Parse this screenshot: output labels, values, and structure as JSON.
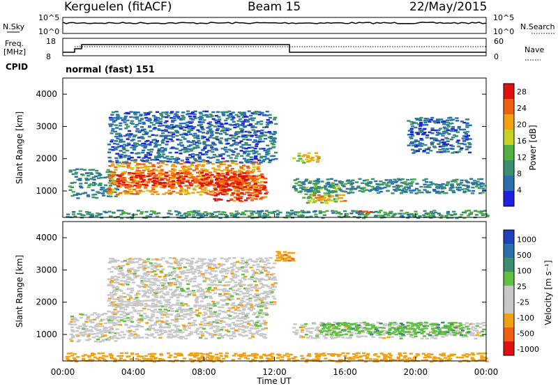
{
  "header": {
    "station": "Kerguelen (fitACF)",
    "beam": "Beam 15",
    "date": "22/May/2015"
  },
  "panels": {
    "nsky_label": "N.Sky",
    "nsky_ticks": [
      "10^5",
      "10^0"
    ],
    "nsearch_label": "N.Search",
    "nsearch_ticks": [
      "10^5",
      "10^0"
    ],
    "freq_label": "Freq.",
    "freq_unit": "[MHz]",
    "freq_ticks": [
      "18",
      "8"
    ],
    "nave_label": "Nave",
    "nave_ticks": [
      "60",
      "0"
    ],
    "cpid_label": "CPID",
    "cpid_text": "normal (fast) 151"
  },
  "colors": {
    "power_scale": [
      "#2020e0",
      "#2a6fb0",
      "#3a8f70",
      "#50b040",
      "#c8d020",
      "#f0a010",
      "#f06010",
      "#e01010"
    ],
    "velocity_scale": [
      "#e01010",
      "#f06010",
      "#f0a010",
      "#c8c8c8",
      "#c8c8c8",
      "#60c040",
      "#3a8f70",
      "#2a6fb0",
      "#2040c0"
    ]
  },
  "chart_data": [
    {
      "type": "heatmap",
      "name": "power",
      "xlabel": "",
      "ylabel": "Slant Range [km]",
      "x_ticks": [
        "00:00",
        "04:00",
        "08:00",
        "12:00",
        "16:00",
        "20:00",
        "00:00"
      ],
      "x_range_hours": [
        0,
        24
      ],
      "y_ticks": [
        1000,
        2000,
        3000,
        4000
      ],
      "y_range_km": [
        180,
        4500
      ],
      "colorbar_label": "Power [dB]",
      "colorbar_ticks": [
        4,
        8,
        12,
        16,
        20,
        24,
        28
      ],
      "colorbar_range": [
        0,
        30
      ],
      "regions": [
        {
          "t": [
            0.3,
            3.0
          ],
          "r": [
            800,
            1700
          ],
          "db": 8
        },
        {
          "t": [
            2.5,
            11.2
          ],
          "r": [
            900,
            1950
          ],
          "db": 22
        },
        {
          "t": [
            3.0,
            10.5
          ],
          "r": [
            1150,
            1600
          ],
          "db": 27
        },
        {
          "t": [
            8.5,
            11.5
          ],
          "r": [
            700,
            1500
          ],
          "db": 26
        },
        {
          "t": [
            2.5,
            12.0
          ],
          "r": [
            1900,
            3500
          ],
          "db": 6
        },
        {
          "t": [
            13.0,
            14.5
          ],
          "r": [
            1900,
            2200
          ],
          "db": 18
        },
        {
          "t": [
            13.5,
            15.5
          ],
          "r": [
            650,
            1300
          ],
          "db": 14
        },
        {
          "t": [
            14.0,
            16.0
          ],
          "r": [
            700,
            900
          ],
          "db": 22
        },
        {
          "t": [
            13.0,
            23.8
          ],
          "r": [
            950,
            1400
          ],
          "db": 8
        },
        {
          "t": [
            19.5,
            23.0
          ],
          "r": [
            2200,
            3300
          ],
          "db": 6
        },
        {
          "t": [
            16.5,
            17.5
          ],
          "r": [
            300,
            400
          ],
          "db": 26
        },
        {
          "t": [
            0.0,
            24.0
          ],
          "r": [
            180,
            420
          ],
          "db": 10
        }
      ]
    },
    {
      "type": "heatmap",
      "name": "velocity",
      "xlabel": "Time UT",
      "ylabel": "Slant Range [km]",
      "x_ticks": [
        "00:00",
        "04:00",
        "08:00",
        "12:00",
        "16:00",
        "20:00",
        "00:00"
      ],
      "x_range_hours": [
        0,
        24
      ],
      "y_ticks": [
        1000,
        2000,
        3000,
        4000
      ],
      "y_range_km": [
        180,
        4500
      ],
      "colorbar_label": "Velocity [m s⁻¹]",
      "colorbar_ticks": [
        1000,
        500,
        100,
        25,
        -25,
        -100,
        -500,
        -1000
      ],
      "regions": [
        {
          "t": [
            0.3,
            3.0
          ],
          "r": [
            800,
            1700
          ],
          "v": 0
        },
        {
          "t": [
            2.5,
            11.5
          ],
          "r": [
            900,
            1950
          ],
          "v": 0
        },
        {
          "t": [
            2.5,
            12.0
          ],
          "r": [
            1900,
            3400
          ],
          "v": 0
        },
        {
          "t": [
            13.0,
            23.8
          ],
          "r": [
            900,
            1400
          ],
          "v": 0
        },
        {
          "t": [
            14.5,
            23.0
          ],
          "r": [
            1000,
            1400
          ],
          "v": 80
        },
        {
          "t": [
            12.0,
            13.0
          ],
          "r": [
            3300,
            3600
          ],
          "v": -80
        },
        {
          "t": [
            0.0,
            24.0
          ],
          "r": [
            180,
            450
          ],
          "v": -60
        }
      ]
    }
  ]
}
